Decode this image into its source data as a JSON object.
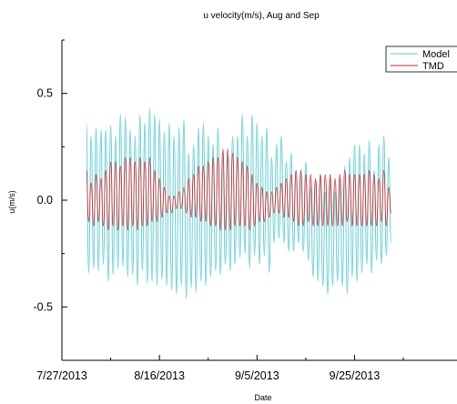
{
  "chart_data": {
    "type": "line",
    "title": "u velocity(m/s), Aug and Sep",
    "xlabel": "Date",
    "ylabel": "u(m/s)",
    "xlim": [
      "2013-07-27",
      "2013-10-16"
    ],
    "ylim": [
      -0.75,
      0.75
    ],
    "x_ticks": [
      "7/27/2013",
      "8/16/2013",
      "9/5/2013",
      "9/25/2013"
    ],
    "y_ticks": [
      -0.5,
      0.0,
      0.5
    ],
    "legend": {
      "placement": "top-right"
    },
    "grid": false,
    "series": [
      {
        "name": "Model",
        "color": "#5bc8cf",
        "x": [
          "2013-08-01",
          "2013-08-02",
          "2013-08-03",
          "2013-08-04",
          "2013-08-05",
          "2013-08-06",
          "2013-08-07",
          "2013-08-08",
          "2013-08-09",
          "2013-08-10",
          "2013-08-11",
          "2013-08-12",
          "2013-08-13",
          "2013-08-14",
          "2013-08-15",
          "2013-08-16",
          "2013-08-17",
          "2013-08-18",
          "2013-08-19",
          "2013-08-20",
          "2013-08-21",
          "2013-08-22",
          "2013-08-23",
          "2013-08-24",
          "2013-08-25",
          "2013-08-26",
          "2013-08-27",
          "2013-08-28",
          "2013-08-29",
          "2013-08-30",
          "2013-08-31",
          "2013-09-01",
          "2013-09-02",
          "2013-09-03",
          "2013-09-04",
          "2013-09-05",
          "2013-09-06",
          "2013-09-07",
          "2013-09-08",
          "2013-09-09",
          "2013-09-10",
          "2013-09-11",
          "2013-09-12",
          "2013-09-13",
          "2013-09-14",
          "2013-09-15",
          "2013-09-16",
          "2013-09-17",
          "2013-09-18",
          "2013-09-19",
          "2013-09-20",
          "2013-09-21",
          "2013-09-22",
          "2013-09-23",
          "2013-09-24",
          "2013-09-25",
          "2013-09-26",
          "2013-09-27",
          "2013-09-28",
          "2013-09-29",
          "2013-09-30",
          "2013-10-01",
          "2013-10-02"
        ],
        "max": [
          0.36,
          0.3,
          0.34,
          0.33,
          0.33,
          0.35,
          0.3,
          0.4,
          0.39,
          0.33,
          0.3,
          0.4,
          0.36,
          0.43,
          0.4,
          0.38,
          0.32,
          0.36,
          0.3,
          0.34,
          0.38,
          0.22,
          0.26,
          0.34,
          0.36,
          0.3,
          0.26,
          0.34,
          0.22,
          0.2,
          0.3,
          0.3,
          0.4,
          0.3,
          0.4,
          0.36,
          0.3,
          0.34,
          0.2,
          0.26,
          0.3,
          0.18,
          0.22,
          0.14,
          0.14,
          0.18,
          0.06,
          0.1,
          0.12,
          0.04,
          0.1,
          0.04,
          0.1,
          0.16,
          0.2,
          0.26,
          0.26,
          0.22,
          0.28,
          0.14,
          0.26,
          0.3,
          0.2
        ],
        "min": [
          -0.34,
          -0.32,
          -0.33,
          -0.3,
          -0.38,
          -0.35,
          -0.32,
          -0.31,
          -0.36,
          -0.35,
          -0.4,
          -0.33,
          -0.39,
          -0.38,
          -0.4,
          -0.37,
          -0.4,
          -0.42,
          -0.44,
          -0.4,
          -0.46,
          -0.41,
          -0.43,
          -0.38,
          -0.4,
          -0.36,
          -0.33,
          -0.35,
          -0.3,
          -0.33,
          -0.3,
          -0.27,
          -0.25,
          -0.32,
          -0.26,
          -0.3,
          -0.26,
          -0.34,
          -0.2,
          -0.18,
          -0.2,
          -0.24,
          -0.24,
          -0.2,
          -0.24,
          -0.28,
          -0.36,
          -0.38,
          -0.4,
          -0.44,
          -0.4,
          -0.38,
          -0.4,
          -0.44,
          -0.36,
          -0.38,
          -0.34,
          -0.3,
          -0.34,
          -0.28,
          -0.3,
          -0.26,
          -0.2
        ]
      },
      {
        "name": "TMD",
        "color": "#c0282c",
        "x": [
          "2013-08-01",
          "2013-08-02",
          "2013-08-03",
          "2013-08-04",
          "2013-08-05",
          "2013-08-06",
          "2013-08-07",
          "2013-08-08",
          "2013-08-09",
          "2013-08-10",
          "2013-08-11",
          "2013-08-12",
          "2013-08-13",
          "2013-08-14",
          "2013-08-15",
          "2013-08-16",
          "2013-08-17",
          "2013-08-18",
          "2013-08-19",
          "2013-08-20",
          "2013-08-21",
          "2013-08-22",
          "2013-08-23",
          "2013-08-24",
          "2013-08-25",
          "2013-08-26",
          "2013-08-27",
          "2013-08-28",
          "2013-08-29",
          "2013-08-30",
          "2013-08-31",
          "2013-09-01",
          "2013-09-02",
          "2013-09-03",
          "2013-09-04",
          "2013-09-05",
          "2013-09-06",
          "2013-09-07",
          "2013-09-08",
          "2013-09-09",
          "2013-09-10",
          "2013-09-11",
          "2013-09-12",
          "2013-09-13",
          "2013-09-14",
          "2013-09-15",
          "2013-09-16",
          "2013-09-17",
          "2013-09-18",
          "2013-09-19",
          "2013-09-20",
          "2013-09-21",
          "2013-09-22",
          "2013-09-23",
          "2013-09-24",
          "2013-09-25",
          "2013-09-26",
          "2013-09-27",
          "2013-09-28",
          "2013-09-29",
          "2013-09-30",
          "2013-10-01",
          "2013-10-02"
        ],
        "max": [
          0.14,
          0.08,
          0.12,
          0.1,
          0.14,
          0.18,
          0.18,
          0.16,
          0.2,
          0.2,
          0.18,
          0.2,
          0.18,
          0.2,
          0.14,
          0.1,
          0.06,
          0.02,
          0.02,
          0.04,
          0.06,
          0.1,
          0.12,
          0.16,
          0.16,
          0.18,
          0.2,
          0.2,
          0.24,
          0.24,
          0.22,
          0.2,
          0.18,
          0.16,
          0.12,
          0.08,
          0.06,
          0.04,
          0.04,
          0.06,
          0.08,
          0.1,
          0.12,
          0.14,
          0.14,
          0.12,
          0.12,
          0.1,
          0.12,
          0.12,
          0.12,
          0.1,
          0.12,
          0.14,
          0.12,
          0.12,
          0.12,
          0.12,
          0.14,
          0.12,
          0.1,
          0.14,
          0.06
        ],
        "min": [
          -0.1,
          -0.12,
          -0.1,
          -0.12,
          -0.14,
          -0.12,
          -0.14,
          -0.12,
          -0.14,
          -0.12,
          -0.14,
          -0.12,
          -0.12,
          -0.1,
          -0.1,
          -0.08,
          -0.06,
          -0.06,
          -0.04,
          -0.04,
          -0.06,
          -0.08,
          -0.08,
          -0.1,
          -0.1,
          -0.12,
          -0.12,
          -0.14,
          -0.14,
          -0.14,
          -0.12,
          -0.12,
          -0.12,
          -0.14,
          -0.12,
          -0.1,
          -0.1,
          -0.08,
          -0.06,
          -0.06,
          -0.08,
          -0.08,
          -0.1,
          -0.12,
          -0.12,
          -0.1,
          -0.12,
          -0.12,
          -0.12,
          -0.12,
          -0.12,
          -0.12,
          -0.12,
          -0.1,
          -0.12,
          -0.12,
          -0.12,
          -0.12,
          -0.12,
          -0.12,
          -0.1,
          -0.12,
          -0.06
        ]
      }
    ]
  }
}
